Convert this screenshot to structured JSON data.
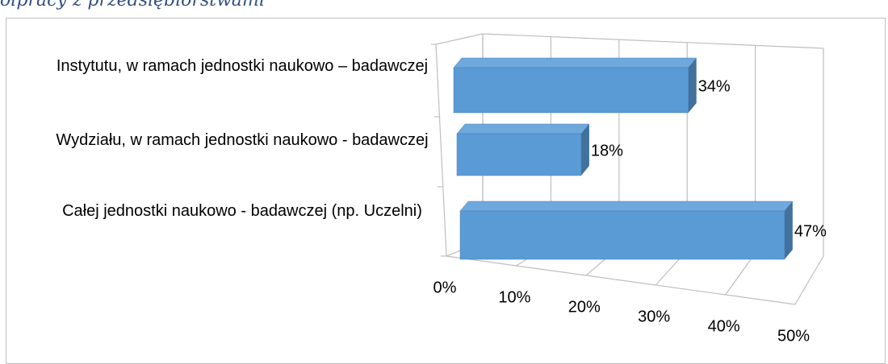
{
  "header_text": "ółpracy z przedsiębiorstwami",
  "chart_data": {
    "type": "bar3d",
    "categories": [
      "Instytutu, w ramach jednostki naukowo – badawczej",
      "Wydziału, w ramach jednostki naukowo - badawczej",
      "Całej jednostki naukowo - badawczej (np. Uczelni)"
    ],
    "values": [
      34,
      18,
      47
    ],
    "value_labels": [
      "34%",
      "18%",
      "47%"
    ],
    "color": "#5b9bd5",
    "xlim": [
      0,
      50
    ],
    "xticks": [
      {
        "value": 0,
        "label": "0%"
      },
      {
        "value": 10,
        "label": "10%"
      },
      {
        "value": 20,
        "label": "20%"
      },
      {
        "value": 30,
        "label": "30%"
      },
      {
        "value": 40,
        "label": "40%"
      },
      {
        "value": 50,
        "label": "50%"
      }
    ],
    "grid": true
  }
}
